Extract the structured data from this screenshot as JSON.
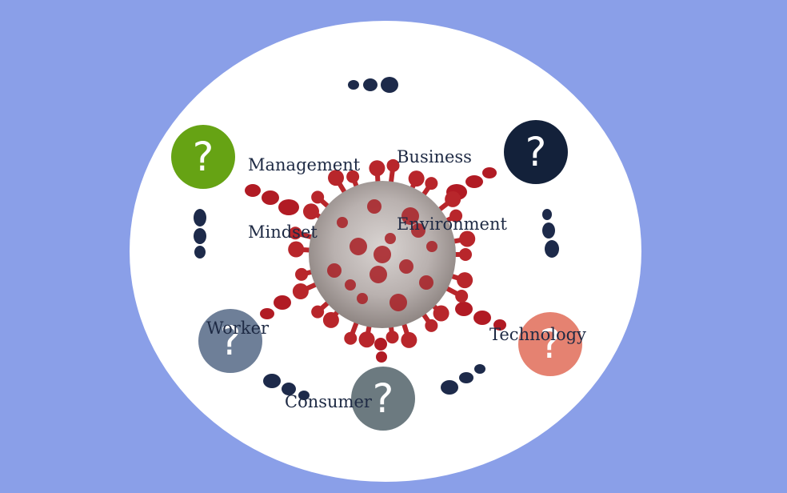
{
  "colors": {
    "background": "#8a9fe8",
    "ellipse": "#ffffff",
    "dot_dark": "#1d2a4a",
    "dot_red": "#b11b24",
    "virus": "#b8262b",
    "virus_core": "#c9c3c1"
  },
  "center": {
    "icon": "virus-icon"
  },
  "nodes": [
    {
      "id": "management",
      "label_lines": [
        "Management",
        "Mindset"
      ],
      "symbol": "?",
      "color": "#66a314"
    },
    {
      "id": "business",
      "label_lines": [
        "Business",
        "Environment"
      ],
      "symbol": "?",
      "color": "#13213a"
    },
    {
      "id": "technology",
      "label_lines": [
        "Technology"
      ],
      "symbol": "?",
      "color": "#e58271"
    },
    {
      "id": "consumer",
      "label_lines": [
        "Consumer"
      ],
      "symbol": "?",
      "color": "#6c7a80"
    },
    {
      "id": "worker",
      "label_lines": [
        "Worker"
      ],
      "symbol": "?",
      "color": "#6e7f98"
    }
  ]
}
